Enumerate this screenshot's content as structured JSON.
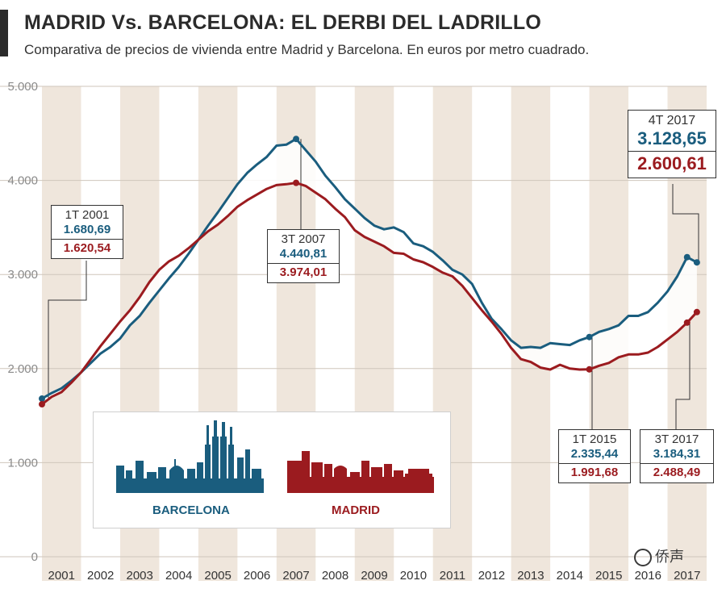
{
  "header": {
    "title": "MADRID Vs. BARCELONA: EL DERBI DEL LADRILLO",
    "subtitle": "Comparativa de precios de vivienda entre Madrid y Barcelona. En euros por metro cuadrado."
  },
  "chart_data": {
    "type": "line",
    "title": "MADRID Vs. BARCELONA: EL DERBI DEL LADRILLO",
    "xlabel": "",
    "ylabel": "",
    "ylim": [
      0,
      5000
    ],
    "y_ticks": [
      "0",
      "1.000",
      "2.000",
      "3.000",
      "4.000",
      "5.000"
    ],
    "y_tick_values": [
      0,
      1000,
      2000,
      3000,
      4000,
      5000
    ],
    "x_ticks": [
      "2001",
      "2002",
      "2003",
      "2004",
      "2005",
      "2006",
      "2007",
      "2008",
      "2009",
      "2010",
      "2011",
      "2012",
      "2013",
      "2014",
      "2015",
      "2016",
      "2017"
    ],
    "grid": true,
    "x_start": 2001.0,
    "x_end": 2018.0,
    "series": [
      {
        "name": "BARCELONA",
        "color": "#1a5d7e",
        "x": [
          2001.0,
          2001.25,
          2001.5,
          2001.75,
          2002.0,
          2002.25,
          2002.5,
          2002.75,
          2003.0,
          2003.25,
          2003.5,
          2003.75,
          2004.0,
          2004.25,
          2004.5,
          2004.75,
          2005.0,
          2005.25,
          2005.5,
          2005.75,
          2006.0,
          2006.25,
          2006.5,
          2006.75,
          2007.0,
          2007.25,
          2007.5,
          2007.75,
          2008.0,
          2008.25,
          2008.5,
          2008.75,
          2009.0,
          2009.25,
          2009.5,
          2009.75,
          2010.0,
          2010.25,
          2010.5,
          2010.75,
          2011.0,
          2011.25,
          2011.5,
          2011.75,
          2012.0,
          2012.25,
          2012.5,
          2012.75,
          2013.0,
          2013.25,
          2013.5,
          2013.75,
          2014.0,
          2014.25,
          2014.5,
          2014.75,
          2015.0,
          2015.25,
          2015.5,
          2015.75,
          2016.0,
          2016.25,
          2016.5,
          2016.75,
          2017.0,
          2017.25,
          2017.5,
          2017.75
        ],
        "values": [
          1680.69,
          1740,
          1790,
          1870,
          1960,
          2060,
          2160,
          2230,
          2320,
          2460,
          2560,
          2700,
          2830,
          2960,
          3080,
          3220,
          3370,
          3520,
          3660,
          3810,
          3960,
          4080,
          4170,
          4250,
          4370,
          4380,
          4440.81,
          4320,
          4200,
          4050,
          3930,
          3800,
          3700,
          3600,
          3520,
          3480,
          3500,
          3450,
          3330,
          3300,
          3240,
          3150,
          3050,
          3000,
          2900,
          2700,
          2530,
          2420,
          2300,
          2220,
          2230,
          2220,
          2270,
          2260,
          2250,
          2300,
          2335.44,
          2390,
          2420,
          2460,
          2560,
          2560,
          2600,
          2700,
          2820,
          2980,
          3184.31,
          3128.65
        ]
      },
      {
        "name": "MADRID",
        "color": "#9b1b1f",
        "x": [
          2001.0,
          2001.25,
          2001.5,
          2001.75,
          2002.0,
          2002.25,
          2002.5,
          2002.75,
          2003.0,
          2003.25,
          2003.5,
          2003.75,
          2004.0,
          2004.25,
          2004.5,
          2004.75,
          2005.0,
          2005.25,
          2005.5,
          2005.75,
          2006.0,
          2006.25,
          2006.5,
          2006.75,
          2007.0,
          2007.25,
          2007.5,
          2007.75,
          2008.0,
          2008.25,
          2008.5,
          2008.75,
          2009.0,
          2009.25,
          2009.5,
          2009.75,
          2010.0,
          2010.25,
          2010.5,
          2010.75,
          2011.0,
          2011.25,
          2011.5,
          2011.75,
          2012.0,
          2012.25,
          2012.5,
          2012.75,
          2013.0,
          2013.25,
          2013.5,
          2013.75,
          2014.0,
          2014.25,
          2014.5,
          2014.75,
          2015.0,
          2015.25,
          2015.5,
          2015.75,
          2016.0,
          2016.25,
          2016.5,
          2016.75,
          2017.0,
          2017.25,
          2017.5,
          2017.75
        ],
        "values": [
          1620.54,
          1700,
          1750,
          1850,
          1960,
          2100,
          2240,
          2370,
          2500,
          2620,
          2760,
          2920,
          3050,
          3140,
          3200,
          3280,
          3370,
          3460,
          3530,
          3620,
          3720,
          3790,
          3850,
          3910,
          3950,
          3960,
          3974.01,
          3940,
          3870,
          3800,
          3700,
          3610,
          3470,
          3400,
          3350,
          3300,
          3230,
          3220,
          3160,
          3130,
          3080,
          3020,
          2980,
          2880,
          2750,
          2620,
          2500,
          2370,
          2220,
          2100,
          2070,
          2010,
          1990,
          2040,
          2000,
          1990,
          1991.68,
          2030,
          2060,
          2120,
          2150,
          2150,
          2170,
          2230,
          2310,
          2390,
          2488.49,
          2600.61
        ]
      }
    ],
    "annotations": [
      {
        "label": "1T 2001",
        "barcelona": "1.680,69",
        "madrid": "1.620,54"
      },
      {
        "label": "3T 2007",
        "barcelona": "4.440,81",
        "madrid": "3.974,01"
      },
      {
        "label": "1T 2015",
        "barcelona": "2.335,44",
        "madrid": "1.991,68"
      },
      {
        "label": "3T 2017",
        "barcelona": "3.184,31",
        "madrid": "2.488,49"
      },
      {
        "label": "4T 2017",
        "barcelona": "3.128,65",
        "madrid": "2.600,61"
      }
    ]
  },
  "legend": {
    "barcelona_label": "BARCELONA",
    "madrid_label": "MADRID",
    "barcelona_color": "#1a5d7e",
    "madrid_color": "#9b1b1f"
  },
  "watermark": "侨声",
  "colors": {
    "stripe": "#efe6dc",
    "grid": "#cfc6bb"
  }
}
